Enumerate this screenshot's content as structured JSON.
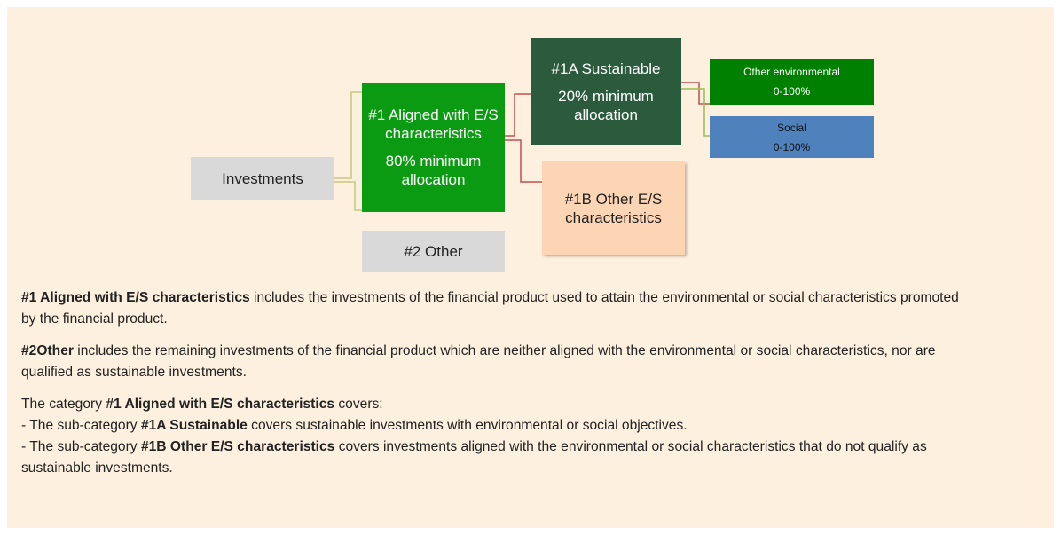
{
  "diagram": {
    "investments": "Investments",
    "aligned": {
      "title": "#1 Aligned with E/S characteristics",
      "allocation": "80% minimum allocation"
    },
    "other": "#2 Other",
    "sustainable": {
      "title": "#1A Sustainable",
      "allocation": "20% minimum allocation"
    },
    "other_es": "#1B Other E/S characteristics",
    "environmental": {
      "title": "Other environmental",
      "range": "0-100%"
    },
    "social": {
      "title": "Social",
      "range": "0-100%"
    }
  },
  "notes": [
    [
      {
        "text": "#1 Aligned with E/S characteristics",
        "bold": true
      },
      {
        "text": " includes the investments of the financial product used to attain the environmental or social characteristics promoted by the financial product.",
        "bold": false
      }
    ],
    [
      {
        "text": "#2Other",
        "bold": true
      },
      {
        "text": " includes the remaining investments of the financial product which are neither aligned with the environmental or social characteristics, nor are qualified as sustainable investments.",
        "bold": false
      }
    ],
    [
      {
        "text": "The category ",
        "bold": false
      },
      {
        "text": "#1 Aligned with E/S characteristics",
        "bold": true
      },
      {
        "text": " covers:",
        "bold": false
      }
    ],
    [
      {
        "text": "- The sub-category ",
        "bold": false
      },
      {
        "text": "#1A Sustainable",
        "bold": true
      },
      {
        "text": " covers sustainable investments with environmental or social objectives.",
        "bold": false
      }
    ],
    [
      {
        "text": "- The sub-category ",
        "bold": false
      },
      {
        "text": "#1B Other E/S characteristics",
        "bold": true
      },
      {
        "text": " covers investments aligned with the environmental or social characteristics that do not qualify as sustainable investments.",
        "bold": false
      }
    ]
  ]
}
